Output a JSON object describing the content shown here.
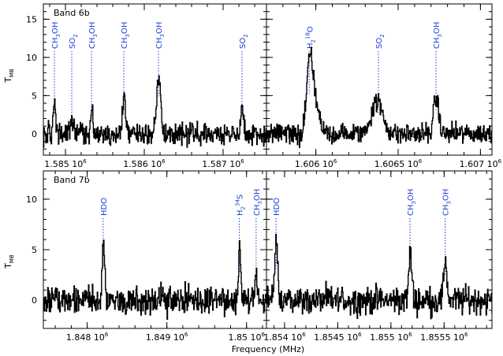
{
  "figure": {
    "xlabel": "Frequency (MHz)",
    "ylabel_main": "T",
    "ylabel_sub": "MB"
  },
  "colors": {
    "trace": "#000000",
    "annotation": "#1a3fd6",
    "axis": "#000000"
  },
  "chart_data": [
    {
      "type": "line",
      "id": "top-left",
      "band_label": "Band 6b",
      "xlim": [
        1584.72,
        1587.55
      ],
      "ylim": [
        -2.8,
        17
      ],
      "xticks": [
        {
          "value": 1585,
          "label": "1.585 10"
        },
        {
          "value": 1586,
          "label": "1.586 10"
        },
        {
          "value": 1587,
          "label": "1.587 10"
        }
      ],
      "xtick_exponent": "6",
      "yticks": [
        0,
        5,
        10,
        15
      ],
      "show_ytick_labels": true,
      "peaks": [
        {
          "center": 1584.86,
          "amp": 4.0,
          "width": 0.014
        },
        {
          "center": 1585.08,
          "amp": 2.2,
          "width": 0.014
        },
        {
          "center": 1585.33,
          "amp": 3.0,
          "width": 0.014
        },
        {
          "center": 1585.74,
          "amp": 5.0,
          "width": 0.02
        },
        {
          "center": 1586.18,
          "amp": 7.8,
          "width": 0.025
        },
        {
          "center": 1587.24,
          "amp": 3.8,
          "width": 0.015
        }
      ],
      "lines": [
        {
          "pos": 1584.86,
          "label": "CH3OH",
          "base": "CH",
          "sub": "3",
          "rest": "OH"
        },
        {
          "pos": 1585.08,
          "label": "SO2",
          "base": "SO",
          "sub": "2",
          "rest": ""
        },
        {
          "pos": 1585.33,
          "label": "CH3OH",
          "base": "CH",
          "sub": "3",
          "rest": "OH"
        },
        {
          "pos": 1585.74,
          "label": "CH3OH",
          "base": "CH",
          "sub": "3",
          "rest": "OH"
        },
        {
          "pos": 1586.18,
          "label": "CH3OH",
          "base": "CH",
          "sub": "3",
          "rest": "OH"
        },
        {
          "pos": 1587.24,
          "label": "SO2",
          "base": "SO",
          "sub": "2",
          "rest": ""
        }
      ]
    },
    {
      "type": "line",
      "id": "top-right",
      "band_label": "",
      "xlim": [
        1605.7,
        1607.07
      ],
      "ylim": [
        -2.8,
        17
      ],
      "xticks": [
        {
          "value": 1606,
          "label": "1.606 10"
        },
        {
          "value": 1606.5,
          "label": "1.6065 10"
        },
        {
          "value": 1607,
          "label": "1.607 10"
        }
      ],
      "xtick_exponent": "6",
      "yticks": [
        0,
        5,
        10,
        15
      ],
      "show_ytick_labels": false,
      "peaks": [
        {
          "center": 1605.96,
          "amp": 8.8,
          "width": 0.018
        },
        {
          "center": 1605.995,
          "amp": 4.0,
          "width": 0.025
        },
        {
          "center": 1606.37,
          "amp": 4.2,
          "width": 0.035
        },
        {
          "center": 1606.73,
          "amp": 4.8,
          "width": 0.015
        }
      ],
      "lines": [
        {
          "pos": 1605.96,
          "label": "H2 18O",
          "base": "H",
          "sub": "2",
          "sup": "18",
          "rest": "O"
        },
        {
          "pos": 1606.38,
          "label": "SO2",
          "base": "SO",
          "sub": "2",
          "rest": ""
        },
        {
          "pos": 1606.73,
          "label": "CH3OH",
          "base": "CH",
          "sub": "3",
          "rest": "OH"
        }
      ]
    },
    {
      "type": "line",
      "id": "bottom-left",
      "band_label": "Band 7b",
      "xlim": [
        1847.45,
        1850.25
      ],
      "ylim": [
        -2.8,
        12.8
      ],
      "xticks": [
        {
          "value": 1848,
          "label": "1.848 10"
        },
        {
          "value": 1849,
          "label": "1.849 10"
        },
        {
          "value": 1850,
          "label": "1.85 10"
        }
      ],
      "xtick_exponent": "6",
      "yticks": [
        0,
        5,
        10
      ],
      "show_ytick_labels": true,
      "peaks": [
        {
          "center": 1848.2,
          "amp": 5.6,
          "width": 0.015
        },
        {
          "center": 1849.91,
          "amp": 4.5,
          "width": 0.014
        },
        {
          "center": 1850.12,
          "amp": 2.2,
          "width": 0.014
        }
      ],
      "lines": [
        {
          "pos": 1848.2,
          "label": "HDO",
          "base": "HDO",
          "sub": "",
          "rest": ""
        },
        {
          "pos": 1849.91,
          "label": "H2 34S",
          "base": "H",
          "sub": "2",
          "sup": "34",
          "rest": "S"
        },
        {
          "pos": 1850.12,
          "label": "CH3OH",
          "base": "CH",
          "sub": "3",
          "rest": "OH"
        }
      ]
    },
    {
      "type": "line",
      "id": "bottom-right",
      "band_label": "",
      "xlim": [
        1853.83,
        1855.95
      ],
      "ylim": [
        -2.8,
        12.8
      ],
      "xticks": [
        {
          "value": 1854,
          "label": "1.854 10"
        },
        {
          "value": 1854.5,
          "label": "1.8545 10"
        },
        {
          "value": 1855,
          "label": "1.855 10"
        },
        {
          "value": 1855.5,
          "label": "1.8555 10"
        }
      ],
      "xtick_exponent": "6",
      "yticks": [
        0,
        5,
        10
      ],
      "show_ytick_labels": false,
      "peaks": [
        {
          "center": 1853.92,
          "amp": 5.2,
          "width": 0.015
        },
        {
          "center": 1855.18,
          "amp": 4.6,
          "width": 0.014
        },
        {
          "center": 1855.51,
          "amp": 4.2,
          "width": 0.014
        }
      ],
      "lines": [
        {
          "pos": 1853.92,
          "label": "HDO",
          "base": "HDO",
          "sub": "",
          "rest": ""
        },
        {
          "pos": 1855.18,
          "label": "CH3OH",
          "base": "CH",
          "sub": "3",
          "rest": "OH"
        },
        {
          "pos": 1855.51,
          "label": "CH3OH",
          "base": "CH",
          "sub": "3",
          "rest": "OH"
        }
      ]
    }
  ]
}
